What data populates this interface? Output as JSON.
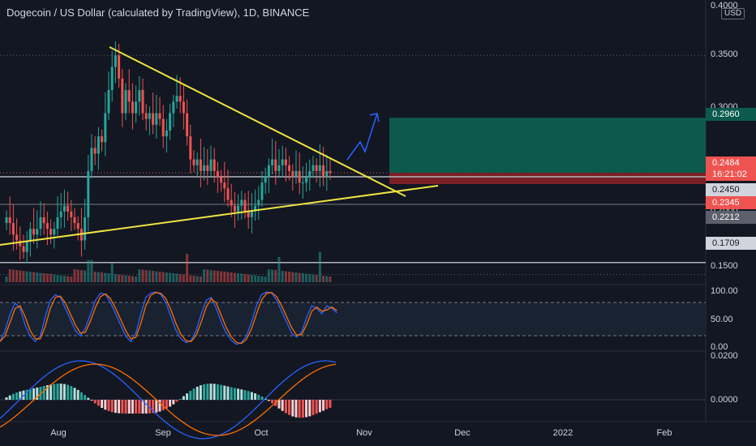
{
  "header": {
    "title": "Dogecoin / US Dollar (calculated by TradingView), 1D, BINANCE",
    "currency": "USD"
  },
  "colors": {
    "background": "#131722",
    "up": "#26a69a",
    "down": "#ef5350",
    "trendline": "#f0e442",
    "drawing_arrow": "#2962ff",
    "target_zone": "#0b5a4d",
    "stop_zone": "#7a1f24",
    "stoch_k": "#2962ff",
    "stoch_d": "#ff6d00"
  },
  "price_axis": {
    "labels": [
      "0.4000",
      "0.3500",
      "0.3000",
      "0.2000",
      "0.1500"
    ],
    "badges": [
      {
        "text": "0.2960",
        "bg": "#0b5a4d",
        "color": "#ffffff"
      },
      {
        "text": "0.2484",
        "bg": "#ef5350",
        "color": "#ffffff"
      },
      {
        "text": "16:21:02",
        "bg": "#ef5350",
        "color": "#ffffff"
      },
      {
        "text": "0.2450",
        "bg": "#d1d4dc",
        "color": "#131722"
      },
      {
        "text": "0.2345",
        "bg": "#ef5350",
        "color": "#ffffff"
      },
      {
        "text": "0.2212",
        "bg": "#5d606b",
        "color": "#ffffff"
      },
      {
        "text": "0.1709",
        "bg": "#d1d4dc",
        "color": "#131722"
      }
    ]
  },
  "stoch_axis": {
    "labels": [
      "100.00",
      "50.00",
      "0.00"
    ]
  },
  "macd_axis": {
    "labels": [
      "0.0200",
      "0.0000"
    ]
  },
  "time_axis": {
    "labels": [
      "Aug",
      "Sep",
      "Oct",
      "Nov",
      "Dec",
      "2022",
      "Feb"
    ]
  },
  "chart_data": {
    "type": "candlestick",
    "symbol": "Dogecoin / US Dollar",
    "interval": "1D",
    "exchange": "BINANCE",
    "last_price": 0.2484,
    "countdown": "16:21:02",
    "horizontal_levels": [
      0.245,
      0.2212,
      0.1709
    ],
    "approx_daily_closes": [
      0.21,
      0.205,
      0.195,
      0.19,
      0.185,
      0.18,
      0.19,
      0.2,
      0.195,
      0.2,
      0.21,
      0.205,
      0.2,
      0.195,
      0.2,
      0.21,
      0.215,
      0.22,
      0.215,
      0.21,
      0.205,
      0.2,
      0.19,
      0.21,
      0.25,
      0.27,
      0.265,
      0.28,
      0.275,
      0.3,
      0.32,
      0.34,
      0.35,
      0.33,
      0.3,
      0.32,
      0.31,
      0.3,
      0.31,
      0.32,
      0.3,
      0.295,
      0.3,
      0.29,
      0.3,
      0.295,
      0.28,
      0.285,
      0.3,
      0.31,
      0.315,
      0.31,
      0.3,
      0.28,
      0.26,
      0.255,
      0.26,
      0.25,
      0.255,
      0.25,
      0.26,
      0.25,
      0.245,
      0.24,
      0.235,
      0.225,
      0.22,
      0.215,
      0.22,
      0.225,
      0.215,
      0.21,
      0.215,
      0.22,
      0.225,
      0.24,
      0.245,
      0.255,
      0.26,
      0.25,
      0.255,
      0.26,
      0.255,
      0.25,
      0.245,
      0.25,
      0.24,
      0.24,
      0.245,
      0.25,
      0.255,
      0.25,
      0.255,
      0.245,
      0.25,
      0.2484
    ],
    "trendlines": [
      {
        "name": "descending resistance",
        "from": {
          "date": "2021-08-16",
          "price": 0.35
        },
        "to": {
          "date": "2021-11-08",
          "price": 0.2345
        }
      },
      {
        "name": "ascending support",
        "from": {
          "date": "2021-07-04",
          "price": 0.17
        },
        "to": {
          "date": "2021-11-12",
          "price": 0.245
        }
      }
    ],
    "position": {
      "entry": 0.2484,
      "target": 0.296,
      "stop": 0.2345
    },
    "stochastic_rsi": {
      "upper_band": 80,
      "lower_band": 20
    },
    "macd": {
      "zero_line": 0.0
    }
  }
}
